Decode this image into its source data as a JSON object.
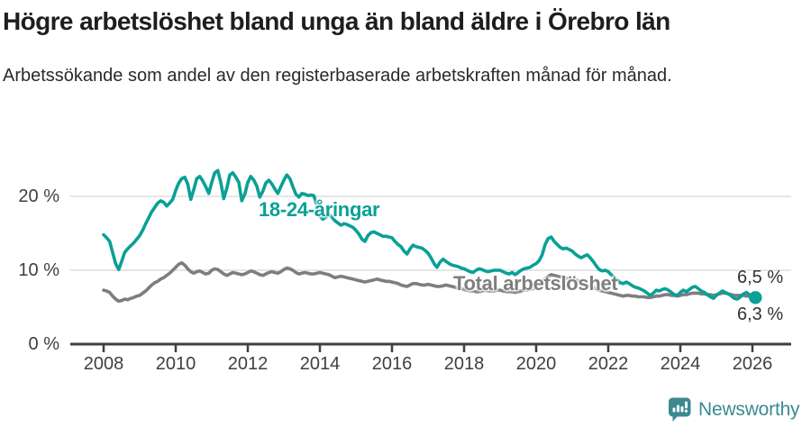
{
  "header": {
    "title": "Högre arbetslöshet bland unga än bland äldre i Örebro län",
    "subtitle": "Arbetssökande som andel av den registerbaserade arbetskraften månad för månad."
  },
  "colors": {
    "youth_line": "#0aa096",
    "total_line": "#7e7e7e",
    "axis_line": "#3f3f3f",
    "grid_line": "#d8d8d8",
    "tick_text": "#404040",
    "logo": "#3b8a90"
  },
  "chart_data": {
    "type": "line",
    "unit": "%",
    "x_start": "2008-01",
    "x_interval": "monthly",
    "x_end": "2026-02",
    "ylim": [
      0,
      25
    ],
    "ytick_values": [
      0,
      10,
      20
    ],
    "ytick_labels": [
      "0 %",
      "10 %",
      "20 %"
    ],
    "xtick_values": [
      2008,
      2010,
      2012,
      2014,
      2016,
      2018,
      2020,
      2022,
      2024,
      2026
    ],
    "xtick_labels": [
      "2008",
      "2010",
      "2012",
      "2014",
      "2016",
      "2018",
      "2020",
      "2022",
      "2024",
      "2026"
    ],
    "grid": "horizontal",
    "legend_position": "inline-annotations",
    "series": [
      {
        "name": "18-24-åringar",
        "label_text": "18-24-åringar",
        "color": "#0aa096",
        "end_value": 6.3,
        "end_label": "6,3 %",
        "end_dot": true,
        "values": [
          14.8,
          14.4,
          13.9,
          12.4,
          10.9,
          10.1,
          11.2,
          12.4,
          12.9,
          13.3,
          13.7,
          14.2,
          14.7,
          15.4,
          16.3,
          17.1,
          17.9,
          18.5,
          19.1,
          19.4,
          19.2,
          18.7,
          19.1,
          19.6,
          20.8,
          21.8,
          22.4,
          22.6,
          21.7,
          19.6,
          20.9,
          22.4,
          22.7,
          22.1,
          21.3,
          20.4,
          21.9,
          23.2,
          23.5,
          21.9,
          19.7,
          21.1,
          22.9,
          23.2,
          22.6,
          21.9,
          19.4,
          20.3,
          21.9,
          22.7,
          22.2,
          21.4,
          19.9,
          20.7,
          21.8,
          22.2,
          21.7,
          21.0,
          20.4,
          21.3,
          22.2,
          22.9,
          22.4,
          21.3,
          20.3,
          19.9,
          20.4,
          20.3,
          20.1,
          20.2,
          20.1,
          18.8,
          17.3,
          16.9,
          17.2,
          17.6,
          17.2,
          16.7,
          16.4,
          16.1,
          16.3,
          16.2,
          16.0,
          15.8,
          15.4,
          14.9,
          14.2,
          13.9,
          14.7,
          15.1,
          15.2,
          15.0,
          14.8,
          14.6,
          14.6,
          14.5,
          14.4,
          13.9,
          13.5,
          13.2,
          12.6,
          12.2,
          12.9,
          13.4,
          13.2,
          13.1,
          13.0,
          12.7,
          12.3,
          11.7,
          10.9,
          10.4,
          11.1,
          11.5,
          11.2,
          10.9,
          10.7,
          10.6,
          10.5,
          10.3,
          10.2,
          10.0,
          9.8,
          9.7,
          10.0,
          10.2,
          10.1,
          9.9,
          9.8,
          9.9,
          10.0,
          10.0,
          10.0,
          9.8,
          9.6,
          9.5,
          9.7,
          9.4,
          9.7,
          10.0,
          10.2,
          10.3,
          10.4,
          10.7,
          10.9,
          11.3,
          12.1,
          13.5,
          14.3,
          14.5,
          13.9,
          13.5,
          13.1,
          12.9,
          13.0,
          12.8,
          12.6,
          12.2,
          11.9,
          11.7,
          11.9,
          12.1,
          11.7,
          11.2,
          10.6,
          10.1,
          9.9,
          10.0,
          9.8,
          9.4,
          9.0,
          8.7,
          8.3,
          8.2,
          8.4,
          8.2,
          7.9,
          7.7,
          7.6,
          7.4,
          7.2,
          6.9,
          6.6,
          6.9,
          7.3,
          7.2,
          7.4,
          7.5,
          7.3,
          7.0,
          6.7,
          6.6,
          7.0,
          7.3,
          7.1,
          7.4,
          7.7,
          7.8,
          7.5,
          7.2,
          7.0,
          6.7,
          6.4,
          6.2,
          6.6,
          6.9,
          7.2,
          7.0,
          6.8,
          6.5,
          6.2,
          6.1,
          6.4,
          6.8,
          7.0,
          6.7,
          6.5,
          6.3
        ]
      },
      {
        "name": "Total arbetslöshet",
        "label_text": "Total arbetslöshet",
        "color": "#7e7e7e",
        "end_value": 6.5,
        "end_label": "6,5 %",
        "end_dot": false,
        "values": [
          7.3,
          7.2,
          7.0,
          6.5,
          6.1,
          5.8,
          5.9,
          6.1,
          6.0,
          6.2,
          6.3,
          6.5,
          6.6,
          6.9,
          7.2,
          7.6,
          8.0,
          8.3,
          8.5,
          8.8,
          9.0,
          9.3,
          9.6,
          10.0,
          10.4,
          10.8,
          11.0,
          10.7,
          10.2,
          9.8,
          9.6,
          9.8,
          9.9,
          9.7,
          9.5,
          9.6,
          10.0,
          10.2,
          10.1,
          9.8,
          9.5,
          9.3,
          9.5,
          9.7,
          9.6,
          9.5,
          9.4,
          9.5,
          9.7,
          9.9,
          9.8,
          9.6,
          9.4,
          9.3,
          9.5,
          9.7,
          9.8,
          9.7,
          9.6,
          9.8,
          10.1,
          10.3,
          10.2,
          10.0,
          9.7,
          9.5,
          9.6,
          9.7,
          9.6,
          9.5,
          9.5,
          9.6,
          9.7,
          9.6,
          9.5,
          9.4,
          9.2,
          9.0,
          9.1,
          9.2,
          9.1,
          9.0,
          8.9,
          8.8,
          8.7,
          8.6,
          8.5,
          8.4,
          8.5,
          8.6,
          8.7,
          8.8,
          8.7,
          8.6,
          8.5,
          8.5,
          8.4,
          8.3,
          8.2,
          8.0,
          7.9,
          7.8,
          8.0,
          8.2,
          8.2,
          8.1,
          8.0,
          8.0,
          8.1,
          8.0,
          7.9,
          7.8,
          7.8,
          7.9,
          8.0,
          7.9,
          7.8,
          7.7,
          7.6,
          7.5,
          7.4,
          7.3,
          7.2,
          7.2,
          7.1,
          7.1,
          7.2,
          7.3,
          7.2,
          7.2,
          7.2,
          7.3,
          7.3,
          7.2,
          7.1,
          7.1,
          7.1,
          7.0,
          7.1,
          7.2,
          7.3,
          7.3,
          7.4,
          7.5,
          7.7,
          7.9,
          8.3,
          8.9,
          9.2,
          9.4,
          9.3,
          9.2,
          9.1,
          9.0,
          8.9,
          8.8,
          8.8,
          8.7,
          8.6,
          8.4,
          8.2,
          8.0,
          7.9,
          7.7,
          7.5,
          7.3,
          7.2,
          7.1,
          7.0,
          6.9,
          6.8,
          6.7,
          6.6,
          6.5,
          6.6,
          6.6,
          6.5,
          6.5,
          6.4,
          6.4,
          6.4,
          6.3,
          6.3,
          6.4,
          6.5,
          6.5,
          6.6,
          6.7,
          6.7,
          6.6,
          6.6,
          6.5,
          6.6,
          6.7,
          6.7,
          6.8,
          6.9,
          6.9,
          6.9,
          6.8,
          6.8,
          6.7,
          6.7,
          6.6,
          6.7,
          6.8,
          6.9,
          6.9,
          6.8,
          6.7,
          6.6,
          6.6,
          6.6,
          6.6,
          6.5,
          6.5,
          6.5,
          6.5
        ]
      }
    ]
  },
  "footer": {
    "brand": "Newsworthy"
  }
}
